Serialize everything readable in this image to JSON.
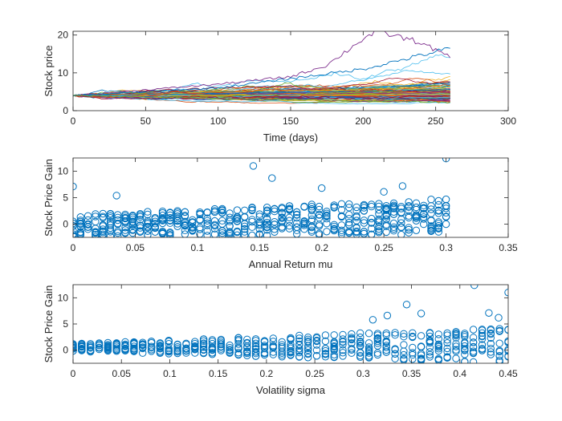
{
  "chart_data": [
    {
      "type": "line",
      "xlabel": "Time (days)",
      "ylabel": "Stock price",
      "xlim": [
        0,
        300
      ],
      "ylim": [
        0,
        21
      ],
      "xticks": [
        0,
        50,
        100,
        150,
        200,
        250,
        300
      ],
      "yticks": [
        0,
        10,
        20
      ],
      "n_days": 260,
      "n_paths": 100,
      "start_price": 4,
      "grid": false,
      "colors": [
        "#0072BD",
        "#D95319",
        "#EDB120",
        "#7E2F8E",
        "#77AC30",
        "#4DBEEE",
        "#A2142F"
      ],
      "series": [
        {
          "values_at_day": [
            [
              0,
              4
            ],
            [
              100,
              7
            ],
            [
              150,
              9
            ],
            [
              175,
              12
            ],
            [
              200,
              19
            ],
            [
              210,
              21
            ],
            [
              240,
              18
            ],
            [
              260,
              14
            ]
          ]
        },
        {
          "values_at_day": [
            [
              0,
              4
            ],
            [
              100,
              6
            ],
            [
              200,
              11
            ],
            [
              260,
              16.5
            ]
          ]
        },
        {
          "values_at_day": [
            [
              0,
              4
            ],
            [
              260,
              2.2
            ]
          ]
        }
      ]
    },
    {
      "type": "scatter",
      "xlabel": "Annual Return mu",
      "ylabel": "Stock Price Gain",
      "xlim": [
        0,
        0.35
      ],
      "ylim": [
        -2.5,
        12.5
      ],
      "xticks": [
        0,
        0.05,
        0.1,
        0.15,
        0.2,
        0.25,
        0.3,
        0.35
      ],
      "xtick_labels": [
        "0",
        "0.05",
        "0.1",
        "0.15",
        "0.2",
        "0.25",
        "0.3",
        "0.35"
      ],
      "yticks": [
        0,
        5,
        10
      ],
      "marker": "circle-open",
      "color": "#0072BD",
      "outliers": [
        [
          0,
          7.1
        ],
        [
          0.145,
          11
        ],
        [
          0.16,
          8.7
        ],
        [
          0.25,
          6.1
        ],
        [
          0.3,
          12.4
        ],
        [
          0.2,
          6.8
        ],
        [
          0.265,
          7.2
        ],
        [
          0.035,
          5.4
        ]
      ]
    },
    {
      "type": "scatter",
      "xlabel": "Volatility sigma",
      "ylabel": "Stock Price Gain",
      "xlim": [
        0,
        0.45
      ],
      "ylim": [
        -2.5,
        12.5
      ],
      "xticks": [
        0,
        0.05,
        0.1,
        0.15,
        0.2,
        0.25,
        0.3,
        0.35,
        0.4,
        0.45
      ],
      "xtick_labels": [
        "0",
        "0.05",
        "0.1",
        "0.15",
        "0.2",
        "0.25",
        "0.3",
        "0.35",
        "0.4",
        "0.45"
      ],
      "yticks": [
        0,
        5,
        10
      ],
      "marker": "circle-open",
      "color": "#0072BD",
      "outliers": [
        [
          0.415,
          12.4
        ],
        [
          0.45,
          11
        ],
        [
          0.345,
          8.7
        ],
        [
          0.325,
          6.6
        ],
        [
          0.44,
          6.2
        ],
        [
          0.36,
          7.0
        ],
        [
          0.43,
          7.1
        ],
        [
          0.31,
          5.8
        ]
      ]
    }
  ]
}
